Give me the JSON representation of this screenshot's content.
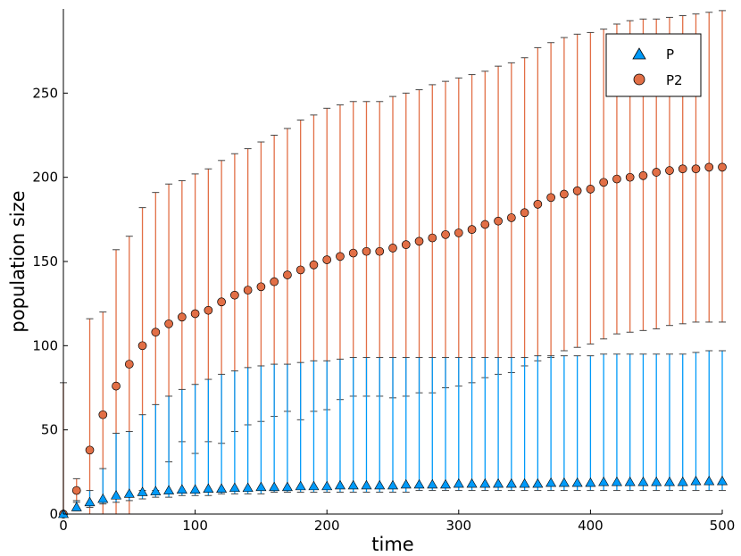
{
  "chart_data": {
    "type": "scatter",
    "xlabel": "time",
    "ylabel": "population size",
    "xlim": [
      0,
      500
    ],
    "ylim": [
      0,
      300
    ],
    "xticks": [
      0,
      100,
      200,
      300,
      400,
      500
    ],
    "yticks": [
      0,
      50,
      100,
      150,
      200,
      250
    ],
    "grid": false,
    "legend_position": "top-right",
    "x": [
      0,
      10,
      20,
      30,
      40,
      50,
      60,
      70,
      80,
      90,
      100,
      110,
      120,
      130,
      140,
      150,
      160,
      170,
      180,
      190,
      200,
      210,
      220,
      230,
      240,
      250,
      260,
      270,
      280,
      290,
      300,
      310,
      320,
      330,
      340,
      350,
      360,
      370,
      380,
      390,
      400,
      410,
      420,
      430,
      440,
      450,
      460,
      470,
      480,
      490,
      500
    ],
    "series": [
      {
        "name": "P",
        "color": "#009af9",
        "marker": "triangle",
        "values": [
          0,
          4,
          7,
          9,
          11,
          12,
          13,
          13.5,
          14,
          14.5,
          14.5,
          15,
          15,
          15.5,
          15.5,
          16,
          16,
          16,
          16.5,
          16.5,
          16.5,
          17,
          17,
          17,
          17,
          17,
          17.5,
          17.5,
          17.5,
          17.5,
          18,
          18,
          18,
          18,
          18,
          18,
          18,
          18.5,
          18.5,
          18.5,
          18.5,
          19,
          19,
          19,
          19,
          19,
          19,
          19,
          19.5,
          19.5,
          19.5
        ],
        "lower": [
          0,
          2,
          4,
          6,
          7,
          8,
          9,
          10,
          10,
          11,
          11,
          11,
          12,
          12,
          12,
          12,
          13,
          13,
          13,
          13,
          13,
          13,
          13,
          13,
          13,
          13,
          13,
          14,
          14,
          14,
          14,
          14,
          14,
          14,
          14,
          14,
          14,
          14,
          14,
          14,
          14,
          14,
          14,
          14,
          14,
          14,
          14,
          14,
          14,
          14,
          14
        ],
        "upper": [
          0,
          8,
          14,
          27,
          48,
          49,
          59,
          65,
          70,
          74,
          77,
          80,
          83,
          85,
          87,
          88,
          89,
          89,
          90,
          91,
          91,
          92,
          93,
          93,
          93,
          93,
          93,
          93,
          93,
          93,
          93,
          93,
          93,
          93,
          93,
          93,
          94,
          94,
          94,
          94,
          94,
          95,
          95,
          95,
          95,
          95,
          95,
          95,
          96,
          97,
          97
        ]
      },
      {
        "name": "P2",
        "color": "#e26f46",
        "marker": "circle",
        "values": [
          0,
          14,
          38,
          59,
          76,
          89,
          100,
          108,
          113,
          117,
          119,
          121,
          126,
          130,
          133,
          135,
          138,
          142,
          145,
          148,
          151,
          153,
          155,
          156,
          156,
          158,
          160,
          162,
          164,
          166,
          167,
          169,
          172,
          174,
          176,
          179,
          184,
          188,
          190,
          192,
          193,
          197,
          199,
          200,
          201,
          203,
          204,
          205,
          205,
          206,
          206
        ],
        "lower": [
          0,
          7,
          0,
          0,
          0,
          0,
          14,
          14,
          31,
          43,
          36,
          43,
          42,
          49,
          53,
          55,
          58,
          61,
          56,
          61,
          62,
          68,
          70,
          70,
          70,
          69,
          70,
          72,
          72,
          75,
          76,
          78,
          81,
          83,
          84,
          88,
          91,
          93,
          97,
          99,
          101,
          104,
          107,
          108,
          109,
          110,
          112,
          113,
          114,
          114,
          114
        ],
        "upper": [
          78,
          21,
          116,
          120,
          157,
          165,
          182,
          191,
          196,
          198,
          202,
          205,
          210,
          214,
          217,
          221,
          225,
          229,
          234,
          237,
          241,
          243,
          245,
          245,
          245,
          248,
          250,
          252,
          255,
          257,
          259,
          261,
          263,
          266,
          268,
          271,
          277,
          280,
          283,
          285,
          286,
          288,
          291,
          293,
          294,
          294,
          295,
          296,
          297,
          298,
          299
        ]
      }
    ]
  }
}
